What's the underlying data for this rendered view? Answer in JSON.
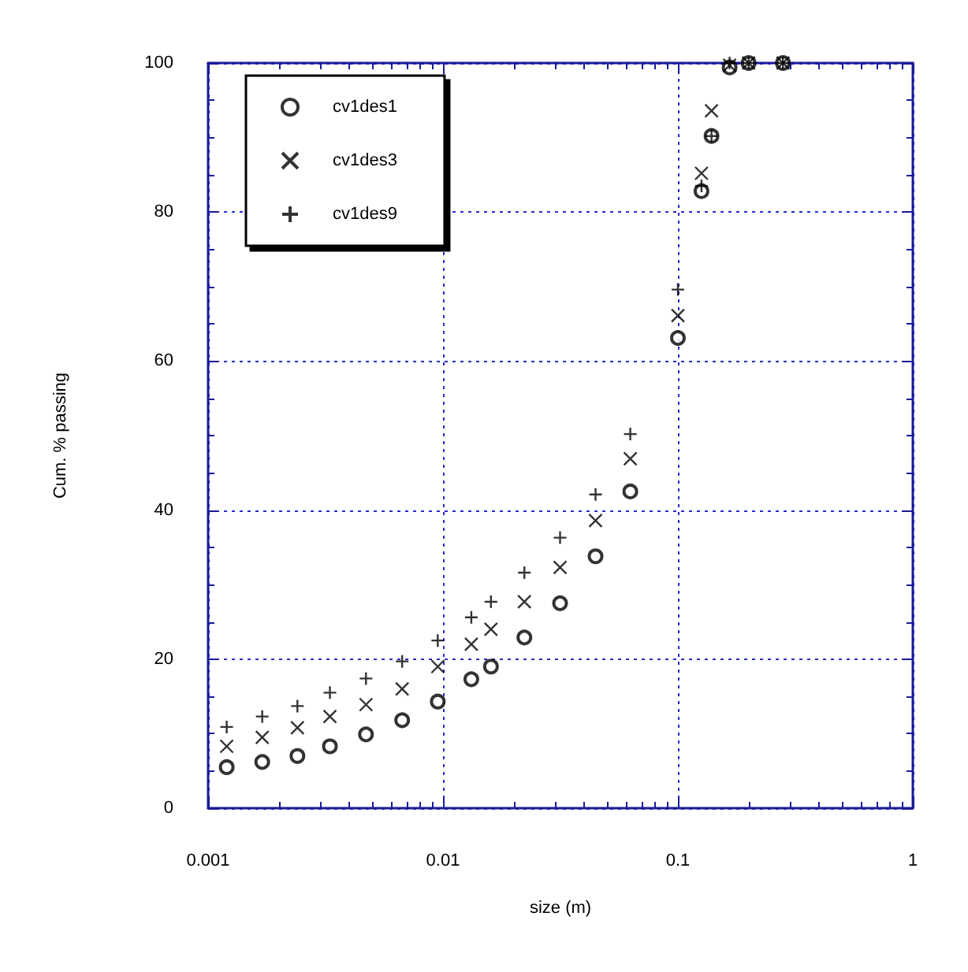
{
  "chart_data": {
    "type": "scatter",
    "xlabel": "size (m)",
    "ylabel": "Cum. % passing",
    "log": "x",
    "grid": true,
    "legend": "top left",
    "xlim": [
      0.001,
      1
    ],
    "xticks": [
      0.001,
      0.01,
      0.1,
      1
    ],
    "ylim": [
      0,
      100
    ],
    "yticks": [
      0,
      20,
      40,
      60,
      80,
      100
    ],
    "x": [
      0.0012,
      0.0017,
      0.0024,
      0.0033,
      0.0047,
      0.0067,
      0.0095,
      0.0132,
      0.016,
      0.0222,
      0.0315,
      0.0446,
      0.0627,
      0.1,
      0.126,
      0.139,
      0.166,
      0.2,
      0.28
    ],
    "series": [
      {
        "name": "cv1des1",
        "color": "#000000",
        "marker": "circle",
        "values": [
          5.5,
          6.2,
          7.0,
          8.3,
          9.9,
          11.8,
          14.3,
          17.3,
          19.0,
          22.9,
          27.5,
          33.8,
          42.5,
          63.1,
          82.8,
          90.2,
          99.4,
          100,
          100
        ]
      },
      {
        "name": "cv1des3",
        "color": "#000000",
        "marker": "x",
        "values": [
          8.3,
          9.5,
          10.8,
          12.3,
          13.9,
          16.0,
          19.0,
          22.0,
          24.0,
          27.7,
          32.3,
          38.6,
          46.9,
          66.1,
          85.2,
          93.6,
          99.7,
          100,
          100
        ]
      },
      {
        "name": "cv1des9",
        "color": "#000000",
        "marker": "plus",
        "values": [
          10.9,
          12.3,
          13.7,
          15.5,
          17.4,
          19.7,
          22.5,
          25.6,
          27.7,
          31.6,
          36.3,
          42.1,
          50.2,
          69.6,
          83.5,
          90.2,
          100,
          100,
          100
        ]
      }
    ]
  }
}
